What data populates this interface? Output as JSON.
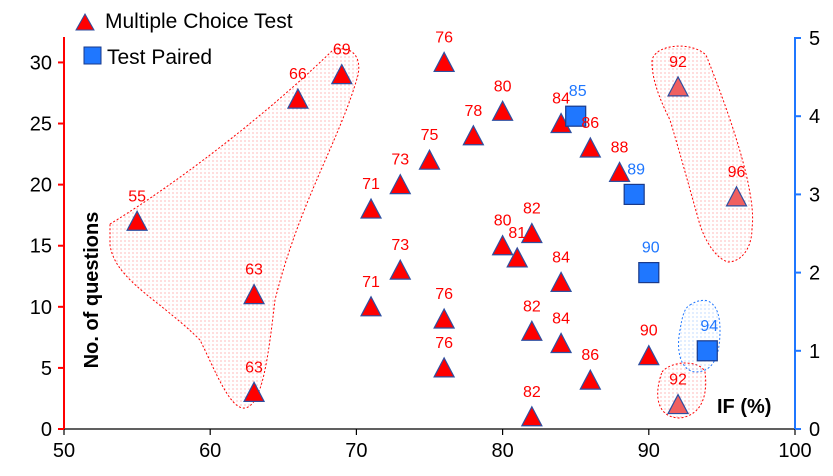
{
  "colors": {
    "triangle_fill": "#ff0000",
    "triangle_stroke": "#2f4fa0",
    "square_fill": "#1f77ff",
    "square_stroke": "#1a3a8a",
    "triangle_label": "#ff0000",
    "square_label": "#1f77ff",
    "left_axis": "#ff0000",
    "right_axis": "#1f77ff",
    "region_triangle": "#ff0000",
    "region_square": "#1f77ff"
  },
  "chart_data": {
    "type": "scatter",
    "xlabel": "IF (%)",
    "ylabel": "No. of questions",
    "xlim": [
      50,
      100
    ],
    "ylim": [
      0,
      32
    ],
    "y2lim": [
      0,
      5
    ],
    "xticks": [
      50,
      60,
      70,
      80,
      90,
      100
    ],
    "yticks": [
      0,
      5,
      10,
      15,
      20,
      25,
      30
    ],
    "y2ticks": [
      0,
      1,
      2,
      3,
      4,
      5
    ],
    "legend_position": "top-left",
    "grid": false,
    "series": [
      {
        "name": "Multiple Choice Test",
        "axis": "left",
        "marker": "triangle",
        "points": [
          {
            "x": 55,
            "y": 17,
            "label": "55"
          },
          {
            "x": 63,
            "y": 11,
            "label": "63"
          },
          {
            "x": 63,
            "y": 3,
            "label": "63"
          },
          {
            "x": 66,
            "y": 27,
            "label": "66"
          },
          {
            "x": 69,
            "y": 29,
            "label": "69"
          },
          {
            "x": 71,
            "y": 18,
            "label": "71"
          },
          {
            "x": 71,
            "y": 10,
            "label": "71"
          },
          {
            "x": 73,
            "y": 20,
            "label": "73"
          },
          {
            "x": 73,
            "y": 13,
            "label": "73"
          },
          {
            "x": 75,
            "y": 22,
            "label": "75"
          },
          {
            "x": 76,
            "y": 30,
            "label": "76"
          },
          {
            "x": 76,
            "y": 9,
            "label": "76"
          },
          {
            "x": 76,
            "y": 5,
            "label": "76"
          },
          {
            "x": 78,
            "y": 24,
            "label": "78"
          },
          {
            "x": 80,
            "y": 26,
            "label": "80"
          },
          {
            "x": 80,
            "y": 15,
            "label": "80"
          },
          {
            "x": 81,
            "y": 14,
            "label": "81"
          },
          {
            "x": 82,
            "y": 16,
            "label": "82"
          },
          {
            "x": 82,
            "y": 8,
            "label": "82"
          },
          {
            "x": 82,
            "y": 1,
            "label": "82"
          },
          {
            "x": 84,
            "y": 25,
            "label": "84"
          },
          {
            "x": 84,
            "y": 12,
            "label": "84"
          },
          {
            "x": 84,
            "y": 7,
            "label": "84"
          },
          {
            "x": 86,
            "y": 23,
            "label": "86"
          },
          {
            "x": 86,
            "y": 4,
            "label": "86"
          },
          {
            "x": 88,
            "y": 21,
            "label": "88"
          },
          {
            "x": 90,
            "y": 6,
            "label": "90"
          },
          {
            "x": 92,
            "y": 28,
            "label": "92"
          },
          {
            "x": 92,
            "y": 2,
            "label": "92"
          },
          {
            "x": 96,
            "y": 19,
            "label": "96"
          }
        ]
      },
      {
        "name": "Test Paired",
        "axis": "right",
        "marker": "square",
        "points": [
          {
            "x": 85,
            "y": 4.0,
            "label": "85"
          },
          {
            "x": 89,
            "y": 3.0,
            "label": "89"
          },
          {
            "x": 90,
            "y": 2.0,
            "label": "90"
          },
          {
            "x": 94,
            "y": 1.0,
            "label": "94"
          }
        ]
      }
    ]
  }
}
